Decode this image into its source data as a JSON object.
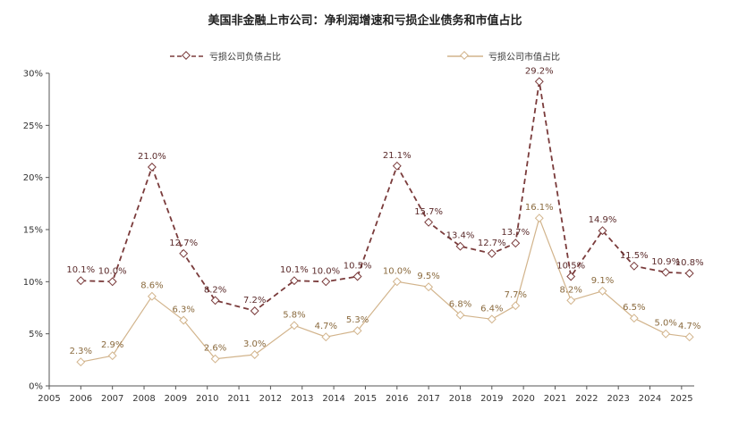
{
  "chart_data": {
    "type": "line",
    "title": "美国非金融上市公司：净利润增速和亏损企业债务和市值占比",
    "xlabel": "",
    "ylabel": "",
    "x_ticks": [
      "2005",
      "2006",
      "2007",
      "2008",
      "2009",
      "2010",
      "2011",
      "2012",
      "2013",
      "2014",
      "2015",
      "2016",
      "2017",
      "2018",
      "2019",
      "2020",
      "2021",
      "2022",
      "2023",
      "2024",
      "2025"
    ],
    "y_ticks": [
      "0%",
      "5%",
      "10%",
      "15%",
      "20%",
      "25%",
      "30%"
    ],
    "ylim": [
      0,
      30
    ],
    "xlim": [
      2005,
      2025.4
    ],
    "grid": false,
    "legend_position": "top",
    "series": [
      {
        "name": "亏损公司负债占比",
        "color": "#7a3b3b",
        "style": "dashed",
        "x": [
          2006,
          2007,
          2008.25,
          2009.25,
          2010.25,
          2011.5,
          2012.75,
          2013.75,
          2014.75,
          2016,
          2017,
          2018,
          2019,
          2019.75,
          2020.5,
          2021.5,
          2022.5,
          2023.5,
          2024.5,
          2025.25
        ],
        "values": [
          10.1,
          10.0,
          21.0,
          12.7,
          8.2,
          7.2,
          10.1,
          10.0,
          10.5,
          21.1,
          15.7,
          13.4,
          12.7,
          13.7,
          29.2,
          10.5,
          14.9,
          11.5,
          10.9,
          10.8
        ],
        "labels": [
          "10.1%",
          "10.0%",
          "21.0%",
          "12.7%",
          "8.2%",
          "7.2%",
          "10.1%",
          "10.0%",
          "10.5%",
          "21.1%",
          "15.7%",
          "13.4%",
          "12.7%",
          "13.7%",
          "29.2%",
          "10.5%",
          "14.9%",
          "11.5%",
          "10.9%",
          "10.8%"
        ]
      },
      {
        "name": "亏损公司市值占比",
        "color": "#d2b48c",
        "style": "solid",
        "x": [
          2006,
          2007,
          2008.25,
          2009.25,
          2010.25,
          2011.5,
          2012.75,
          2013.75,
          2014.75,
          2016,
          2017,
          2018,
          2019,
          2019.75,
          2020.5,
          2021.5,
          2022.5,
          2023.5,
          2024.5,
          2025.25
        ],
        "values": [
          2.3,
          2.9,
          8.6,
          6.3,
          2.6,
          3.0,
          5.8,
          4.7,
          5.3,
          10.0,
          9.5,
          6.8,
          6.4,
          7.7,
          16.1,
          8.2,
          9.1,
          6.5,
          5.0,
          4.7
        ],
        "labels": [
          "2.3%",
          "2.9%",
          "8.6%",
          "6.3%",
          "2.6%",
          "3.0%",
          "5.8%",
          "4.7%",
          "5.3%",
          "10.0%",
          "9.5%",
          "6.8%",
          "6.4%",
          "7.7%",
          "16.1%",
          "8.2%",
          "9.1%",
          "6.5%",
          "5.0%",
          "4.7%"
        ]
      }
    ]
  }
}
